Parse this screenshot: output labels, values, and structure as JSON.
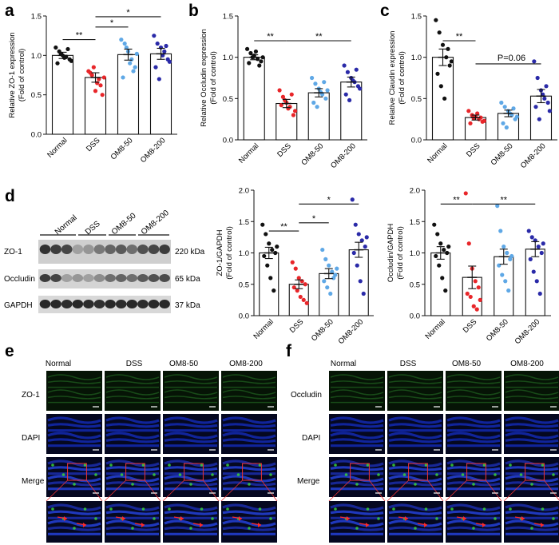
{
  "panel_labels": [
    "a",
    "b",
    "c",
    "d",
    "e",
    "f"
  ],
  "groups": [
    "Normal",
    "DSS",
    "OM8-50",
    "OM8-200"
  ],
  "colors": {
    "Normal": "#111111",
    "DSS": "#e8262a",
    "OM8-50": "#5fa8e6",
    "OM8-200": "#2a2aa8"
  },
  "chart_data": [
    {
      "id": "a",
      "type": "bar",
      "ylabel1": "Relative ZO-1 expression",
      "ylabel2": "(Fold of control)",
      "ylim": [
        0,
        1.5
      ],
      "yticks": [
        "0.0",
        "0.5",
        "1.0",
        "1.5"
      ],
      "categories": [
        "Normal",
        "DSS",
        "OM8-50",
        "OM8-200"
      ],
      "values": [
        1.0,
        0.72,
        1.01,
        1.02
      ],
      "errors": [
        0.04,
        0.06,
        0.07,
        0.07
      ],
      "points": [
        [
          1.1,
          1.05,
          1.0,
          0.98,
          0.95,
          0.9,
          1.02,
          0.97,
          1.08,
          0.93
        ],
        [
          0.8,
          0.75,
          0.55,
          0.7,
          0.5,
          0.78,
          0.85,
          0.65,
          0.62,
          0.72
        ],
        [
          1.2,
          1.15,
          1.05,
          0.95,
          0.85,
          0.72,
          1.1,
          0.9,
          0.8,
          1.02
        ],
        [
          1.25,
          1.15,
          1.1,
          1.05,
          0.95,
          0.85,
          0.7,
          1.0,
          1.12,
          0.92
        ]
      ],
      "sig": [
        {
          "from": 0,
          "to": 1,
          "label": "**",
          "y": 1.2
        },
        {
          "from": 1,
          "to": 2,
          "label": "*",
          "y": 1.36
        },
        {
          "from": 2,
          "to": 3,
          "label": "*",
          "y": 1.5
        },
        {
          "from": 1,
          "to": 3,
          "label": "*",
          "y": 1.5
        }
      ],
      "sig_mode": "a"
    },
    {
      "id": "b",
      "type": "bar",
      "ylabel1": "Relative Occludin expression",
      "ylabel2": "(Fold of control)",
      "ylim": [
        0,
        1.5
      ],
      "yticks": [
        "0.0",
        "0.5",
        "1.0",
        "1.5"
      ],
      "categories": [
        "Normal",
        "DSS",
        "OM8-50",
        "OM8-200"
      ],
      "values": [
        1.0,
        0.44,
        0.57,
        0.7
      ],
      "errors": [
        0.03,
        0.05,
        0.05,
        0.06
      ],
      "points": [
        [
          1.1,
          1.05,
          1.02,
          0.98,
          0.95,
          0.93,
          1.0,
          1.07,
          0.9,
          1.0
        ],
        [
          0.6,
          0.52,
          0.45,
          0.4,
          0.3,
          0.42,
          0.48,
          0.38,
          0.55,
          0.35
        ],
        [
          0.75,
          0.68,
          0.62,
          0.55,
          0.5,
          0.45,
          0.4,
          0.58,
          0.7,
          0.6
        ],
        [
          0.9,
          0.82,
          0.75,
          0.7,
          0.65,
          0.55,
          0.48,
          0.72,
          0.85,
          0.62
        ]
      ],
      "sig": [
        {
          "from": 0,
          "to": 1,
          "label": "**",
          "y": 1.2
        },
        {
          "from": 1,
          "to": 3,
          "label": "**",
          "y": 1.2
        }
      ]
    },
    {
      "id": "c",
      "type": "bar",
      "ylabel1": "Relative Claudin expression",
      "ylabel2": "(Fold of control)",
      "ylim": [
        0,
        1.5
      ],
      "yticks": [
        "0.0",
        "0.5",
        "1.0",
        "1.5"
      ],
      "categories": [
        "Normal",
        "DSS",
        "OM8-50",
        "OM8-200"
      ],
      "values": [
        1.0,
        0.27,
        0.32,
        0.53
      ],
      "errors": [
        0.1,
        0.03,
        0.04,
        0.08
      ],
      "points": [
        [
          1.45,
          1.3,
          1.15,
          1.0,
          0.9,
          0.8,
          0.65,
          0.5,
          1.1,
          0.95
        ],
        [
          0.35,
          0.3,
          0.28,
          0.25,
          0.22,
          0.2,
          0.26,
          0.32,
          0.27,
          0.23
        ],
        [
          0.45,
          0.4,
          0.35,
          0.3,
          0.25,
          0.2,
          0.15,
          0.32,
          0.38,
          0.28
        ],
        [
          0.95,
          0.75,
          0.6,
          0.5,
          0.45,
          0.4,
          0.25,
          0.55,
          0.65,
          0.35
        ]
      ],
      "sig": [
        {
          "from": 0,
          "to": 1,
          "label": "**",
          "y": 1.2
        },
        {
          "from": 1,
          "to": 3,
          "label": "P=0.06",
          "y": 0.92
        }
      ]
    },
    {
      "id": "d1",
      "type": "bar",
      "ylabel1": "ZO-1/GAPDH",
      "ylabel2": "(Fold of control)",
      "ylim": [
        0,
        2.0
      ],
      "yticks": [
        "0.0",
        "0.5",
        "1.0",
        "1.5",
        "2.0"
      ],
      "categories": [
        "Normal",
        "DSS",
        "OM8-50",
        "OM8-200"
      ],
      "values": [
        1.0,
        0.5,
        0.67,
        1.05
      ],
      "errors": [
        0.09,
        0.07,
        0.08,
        0.12
      ],
      "points": [
        [
          1.45,
          1.3,
          1.15,
          1.05,
          1.0,
          0.95,
          0.8,
          0.6,
          0.4,
          1.1
        ],
        [
          0.85,
          0.75,
          0.6,
          0.55,
          0.5,
          0.45,
          0.4,
          0.3,
          0.25,
          0.2
        ],
        [
          1.05,
          0.9,
          0.8,
          0.7,
          0.65,
          0.55,
          0.45,
          0.35,
          0.6,
          0.75
        ],
        [
          1.85,
          1.45,
          1.3,
          1.2,
          1.1,
          1.0,
          0.8,
          0.55,
          0.35,
          1.25
        ]
      ],
      "sig": [
        {
          "from": 0,
          "to": 1,
          "label": "**",
          "y": 1.35
        },
        {
          "from": 1,
          "to": 2,
          "label": "*",
          "y": 1.48
        },
        {
          "from": 1,
          "to": 3,
          "label": "*",
          "y": 1.78
        }
      ]
    },
    {
      "id": "d2",
      "type": "bar",
      "ylabel1": "Occludin/GAPDH",
      "ylabel2": "(Fold of control)",
      "ylim": [
        0,
        2.0
      ],
      "yticks": [
        "0.0",
        "0.5",
        "1.0",
        "1.5",
        "2.0"
      ],
      "categories": [
        "Normal",
        "DSS",
        "OM8-50",
        "OM8-200"
      ],
      "values": [
        1.0,
        0.61,
        0.94,
        1.06
      ],
      "errors": [
        0.1,
        0.18,
        0.12,
        0.12
      ],
      "points": [
        [
          1.45,
          1.3,
          1.15,
          1.05,
          1.0,
          0.95,
          0.8,
          0.6,
          0.4,
          1.1
        ],
        [
          1.95,
          1.15,
          0.75,
          0.55,
          0.45,
          0.35,
          0.3,
          0.15,
          0.1,
          0.25
        ],
        [
          1.75,
          1.35,
          1.1,
          1.0,
          0.9,
          0.8,
          0.65,
          0.55,
          0.4,
          0.95
        ],
        [
          1.35,
          1.25,
          1.2,
          1.1,
          1.0,
          0.9,
          0.7,
          0.55,
          0.35,
          1.15
        ]
      ],
      "sig": [
        {
          "from": 0,
          "to": 1,
          "label": "**",
          "y": 1.78
        },
        {
          "from": 1,
          "to": 3,
          "label": "**",
          "y": 1.78
        }
      ]
    }
  ],
  "western": {
    "header": [
      "Normal",
      "DSS",
      "OM8-50",
      "OM8-200"
    ],
    "rows": [
      {
        "name": "ZO-1",
        "size": "220 kDa"
      },
      {
        "name": "Occludin",
        "size": "65 kDa"
      },
      {
        "name": "GAPDH",
        "size": "37 kDa"
      }
    ]
  },
  "panel_e": {
    "header": [
      "Normal",
      "DSS",
      "OM8-50",
      "OM8-200"
    ],
    "rows": [
      "ZO-1",
      "DAPI",
      "Merge"
    ]
  },
  "panel_f": {
    "header": [
      "Normal",
      "DSS",
      "OM8-50",
      "OM8-200"
    ],
    "rows": [
      "Occludin",
      "DAPI",
      "Merge"
    ]
  }
}
